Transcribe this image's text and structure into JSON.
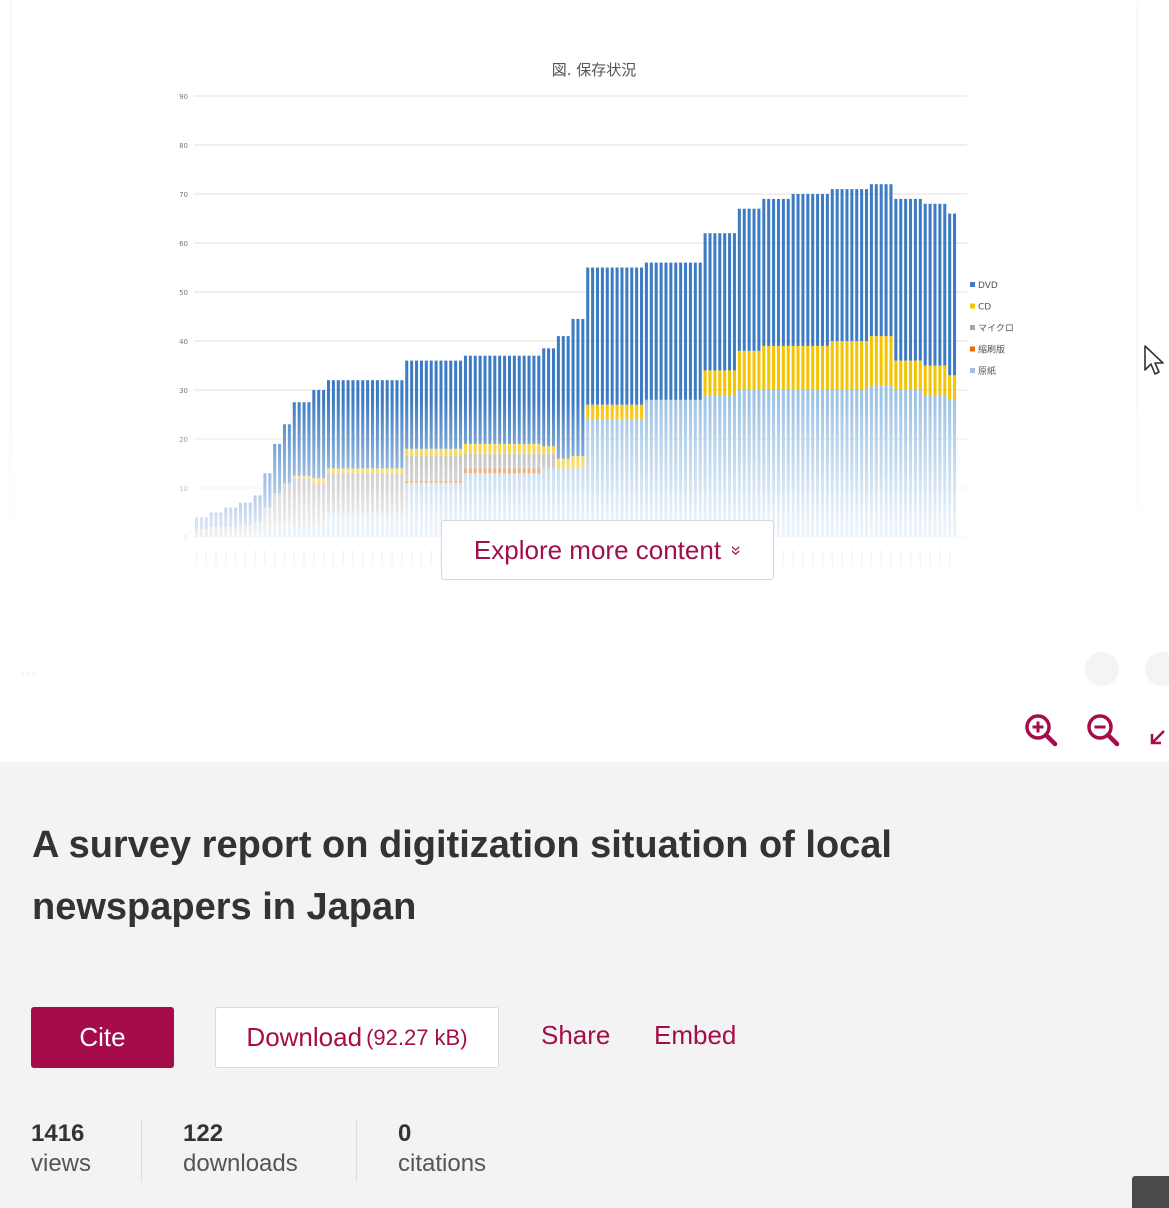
{
  "chart_data": {
    "type": "bar",
    "stacked": true,
    "title": "図. 保存状況",
    "xlabel": "",
    "ylabel": "",
    "ylim": [
      0,
      90
    ],
    "yticks": [
      0,
      10,
      20,
      30,
      40,
      50,
      60,
      70,
      80,
      90
    ],
    "grid": true,
    "legend_position": "right",
    "series": [
      {
        "name": "DVD",
        "color": "#3d7cc4"
      },
      {
        "name": "CD",
        "color": "#f5c400"
      },
      {
        "name": "マイクロ",
        "color": "#a6a6a6"
      },
      {
        "name": "縮刷版",
        "color": "#e46c0a"
      },
      {
        "name": "原紙",
        "color": "#9dc3e6"
      }
    ],
    "segments": [
      {
        "count": 3,
        "values": [
          2.5,
          0,
          1.5,
          0,
          0
        ]
      },
      {
        "count": 3,
        "values": [
          3,
          0,
          1.5,
          0,
          0.5
        ]
      },
      {
        "count": 3,
        "values": [
          4,
          0,
          1.5,
          0,
          0.5
        ]
      },
      {
        "count": 3,
        "values": [
          4.5,
          0,
          1.5,
          0,
          1
        ]
      },
      {
        "count": 2,
        "values": [
          5.5,
          0,
          2,
          0,
          1
        ]
      },
      {
        "count": 2,
        "values": [
          7,
          0,
          4,
          0,
          2
        ]
      },
      {
        "count": 2,
        "values": [
          10,
          0,
          6,
          0,
          3
        ]
      },
      {
        "count": 2,
        "values": [
          12,
          0,
          8,
          0,
          3
        ]
      },
      {
        "count": 4,
        "values": [
          15,
          0.5,
          10,
          0,
          2
        ]
      },
      {
        "count": 3,
        "values": [
          18,
          1,
          8,
          0,
          3
        ]
      },
      {
        "count": 16,
        "values": [
          18,
          1,
          8,
          0,
          5
        ]
      },
      {
        "count": 12,
        "values": [
          18,
          1.5,
          5,
          0.5,
          11
        ]
      },
      {
        "count": 16,
        "values": [
          18,
          2,
          3,
          1,
          13
        ]
      },
      {
        "count": 3,
        "values": [
          20,
          1.5,
          3,
          0,
          14
        ]
      },
      {
        "count": 3,
        "values": [
          25,
          2,
          0,
          0,
          14
        ]
      },
      {
        "count": 3,
        "values": [
          28,
          2.5,
          0,
          0,
          14
        ]
      },
      {
        "count": 12,
        "values": [
          28,
          3,
          0,
          0,
          24
        ]
      },
      {
        "count": 8,
        "values": [
          28,
          0,
          0,
          0,
          28
        ]
      },
      {
        "count": 4,
        "values": [
          28,
          0,
          0,
          0,
          28
        ]
      },
      {
        "count": 7,
        "values": [
          28,
          5,
          0,
          0,
          29
        ]
      },
      {
        "count": 5,
        "values": [
          29,
          8,
          0,
          0,
          30
        ]
      },
      {
        "count": 6,
        "values": [
          30,
          9,
          0,
          0,
          30
        ]
      },
      {
        "count": 8,
        "values": [
          31,
          9,
          0,
          0,
          30
        ]
      },
      {
        "count": 8,
        "values": [
          31,
          10,
          0,
          0,
          30
        ]
      },
      {
        "count": 5,
        "values": [
          31,
          10,
          0,
          0,
          31
        ]
      },
      {
        "count": 6,
        "values": [
          33,
          6,
          0,
          0,
          30
        ]
      },
      {
        "count": 5,
        "values": [
          33,
          6,
          0,
          0,
          29
        ]
      },
      {
        "count": 2,
        "values": [
          33,
          5,
          0,
          0,
          28
        ]
      }
    ]
  },
  "explore": {
    "label": "Explore more content",
    "chevron": "»"
  },
  "icons": {
    "zoom_in": "zoom-in-icon",
    "zoom_out": "zoom-out-icon",
    "expand": "expand-icon",
    "cursor": "cursor-arrow-icon",
    "chevron": "chevron-down-icon"
  },
  "colors": {
    "brand": "#a50d4a",
    "info_bg": "#f3f3f3"
  },
  "item": {
    "title": "A survey report on digitization situation of local newspapers in Japan",
    "cite_label": "Cite",
    "download_label": "Download",
    "download_size": "(92.27 kB)",
    "share_label": "Share",
    "embed_label": "Embed"
  },
  "stats": {
    "views": {
      "value": "1416",
      "label": "views"
    },
    "downloads": {
      "value": "122",
      "label": "downloads"
    },
    "citations": {
      "value": "0",
      "label": "citations"
    }
  }
}
